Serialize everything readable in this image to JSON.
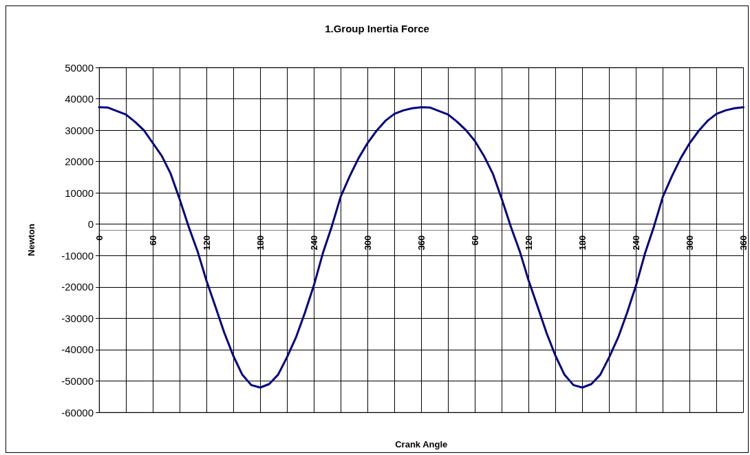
{
  "chart_data": {
    "type": "line",
    "title": "1.Group Inertia Force",
    "xlabel": "Crank Angle",
    "ylabel": "Newton",
    "categories": [
      "0",
      null,
      null,
      null,
      null,
      null,
      "60",
      null,
      null,
      null,
      null,
      null,
      "120",
      null,
      null,
      null,
      null,
      null,
      "180",
      null,
      null,
      null,
      null,
      null,
      "240",
      null,
      null,
      null,
      null,
      null,
      "300",
      null,
      null,
      null,
      null,
      null,
      "360",
      null,
      null,
      null,
      null,
      null,
      "60",
      null,
      null,
      null,
      null,
      null,
      "120",
      null,
      null,
      null,
      null,
      null,
      "180",
      null,
      null,
      null,
      null,
      null,
      "240",
      null,
      null,
      null,
      null,
      null,
      "300",
      null,
      null,
      null,
      null,
      null,
      "360"
    ],
    "series": [
      {
        "color": "#000080",
        "values": [
          37300,
          37200,
          36100,
          35000,
          32700,
          30000,
          25900,
          21800,
          16100,
          8000,
          -700,
          -8600,
          -18000,
          -26300,
          -34700,
          -42000,
          -48000,
          -51300,
          -52100,
          -51000,
          -48000,
          -42400,
          -36100,
          -28200,
          -19500,
          -9300,
          -700,
          8800,
          15300,
          21100,
          25900,
          29800,
          33000,
          35200,
          36300,
          37000,
          37300,
          37200,
          36100,
          35000,
          32700,
          30000,
          26500,
          21800,
          16100,
          8000,
          -700,
          -8600,
          -18000,
          -26300,
          -34700,
          -42000,
          -48000,
          -51300,
          -52100,
          -51000,
          -48000,
          -42400,
          -36100,
          -28200,
          -19500,
          -9300,
          -700,
          8800,
          15300,
          21100,
          25900,
          29800,
          33000,
          35200,
          36300,
          37000,
          37300
        ]
      }
    ],
    "ylim": [
      -60000,
      50000
    ],
    "yticks": [
      -60000,
      -50000,
      -40000,
      -30000,
      -20000,
      -10000,
      0,
      10000,
      20000,
      30000,
      40000,
      50000
    ],
    "grid": true,
    "marker": "none",
    "line_style": "solid"
  }
}
